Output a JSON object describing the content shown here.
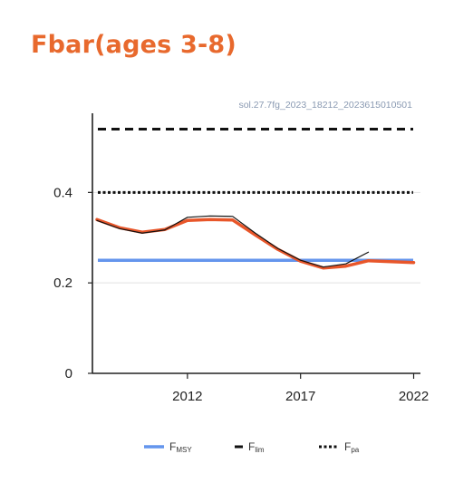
{
  "page": {
    "title": "Fbar(ages 3-8)"
  },
  "chart_data": {
    "type": "line",
    "title": "Fbar(ages 3-8)",
    "caption": "sol.27.7fg_2023_18212_2023615010501",
    "xlabel": "",
    "ylabel": "",
    "xlim": [
      2007.8,
      2022.3
    ],
    "ylim": [
      0,
      0.575
    ],
    "x_ticks": [
      {
        "value": 2012,
        "label": "2012"
      },
      {
        "value": 2017,
        "label": "2017"
      },
      {
        "value": 2022,
        "label": "2022"
      }
    ],
    "y_ticks": [
      {
        "value": 0,
        "label": "0"
      },
      {
        "value": 0.2,
        "label": "0.2"
      },
      {
        "value": 0.4,
        "label": "0.4"
      }
    ],
    "grid": "horizontal",
    "legend_position": "bottom",
    "series": [
      {
        "color": "#e8562a",
        "x": [
          2008,
          2009,
          2010,
          2011,
          2012,
          2013,
          2014,
          2015,
          2016,
          2017,
          2018,
          2019,
          2020,
          2021,
          2022
        ],
        "values": [
          0.34,
          0.322,
          0.312,
          0.318,
          0.338,
          0.34,
          0.339,
          0.306,
          0.274,
          0.248,
          0.233,
          0.237,
          0.249,
          0.247,
          0.245
        ]
      },
      {
        "color": "#111111",
        "x": [
          2008,
          2009,
          2010,
          2011,
          2012,
          2013,
          2014,
          2015,
          2016,
          2017,
          2018,
          2019,
          2020
        ],
        "values": [
          0.338,
          0.32,
          0.31,
          0.317,
          0.345,
          0.348,
          0.347,
          0.31,
          0.276,
          0.25,
          0.235,
          0.242,
          0.268
        ]
      }
    ],
    "reference_lines": [
      {
        "name": "FMSY",
        "label_main": "F",
        "label_sub": "MSY",
        "value": 0.25,
        "color": "#6495ed",
        "style": "solid"
      },
      {
        "name": "Flim",
        "label_main": "F",
        "label_sub": "lim",
        "value": 0.54,
        "color": "#111111",
        "style": "dashed"
      },
      {
        "name": "Fpa",
        "label_main": "F",
        "label_sub": "pa",
        "value": 0.4,
        "color": "#111111",
        "style": "dotted"
      }
    ]
  }
}
